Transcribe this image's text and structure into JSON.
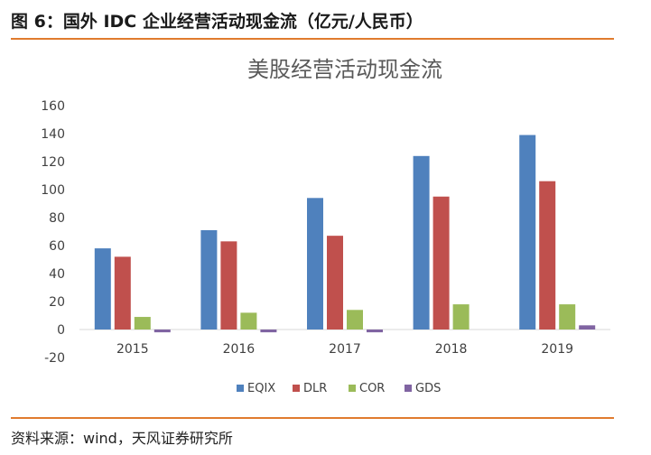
{
  "figure": {
    "caption": "图 6：国外 IDC 企业经营活动现金流（亿元/人民币）",
    "source": "资料来源：wind，天风证券研究所"
  },
  "colors": {
    "accent_rule": "#e07b2e",
    "EQIX": "#4f81bd",
    "DLR": "#c0504d",
    "COR": "#9bbb59",
    "GDS": "#8064a2"
  },
  "chart_data": {
    "type": "bar",
    "title": "美股经营活动现金流",
    "xlabel": "",
    "ylabel": "",
    "categories": [
      "2015",
      "2016",
      "2017",
      "2018",
      "2019"
    ],
    "series": [
      {
        "name": "EQIX",
        "values": [
          58,
          71,
          94,
          124,
          139
        ]
      },
      {
        "name": "DLR",
        "values": [
          52,
          63,
          67,
          95,
          106
        ]
      },
      {
        "name": "COR",
        "values": [
          9,
          12,
          14,
          18,
          18
        ]
      },
      {
        "name": "GDS",
        "values": [
          -2,
          -2,
          -2,
          0,
          3
        ]
      }
    ],
    "ylim": [
      -20,
      160
    ],
    "yticks": [
      -20,
      0,
      20,
      40,
      60,
      80,
      100,
      120,
      140,
      160
    ],
    "grid": false,
    "legend_position": "bottom"
  }
}
